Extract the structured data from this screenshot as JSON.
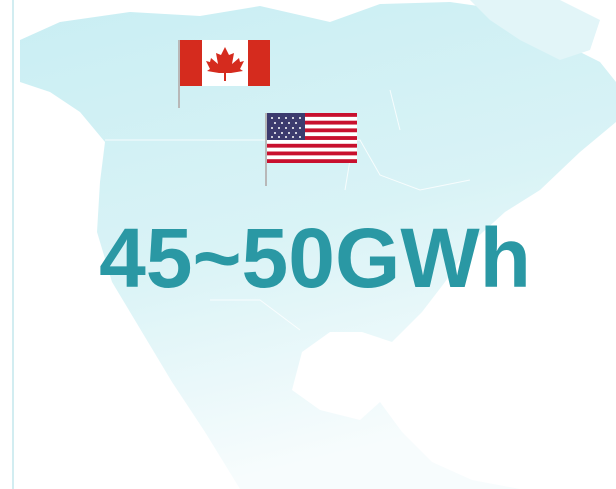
{
  "headline": "45~50GWh"
}
